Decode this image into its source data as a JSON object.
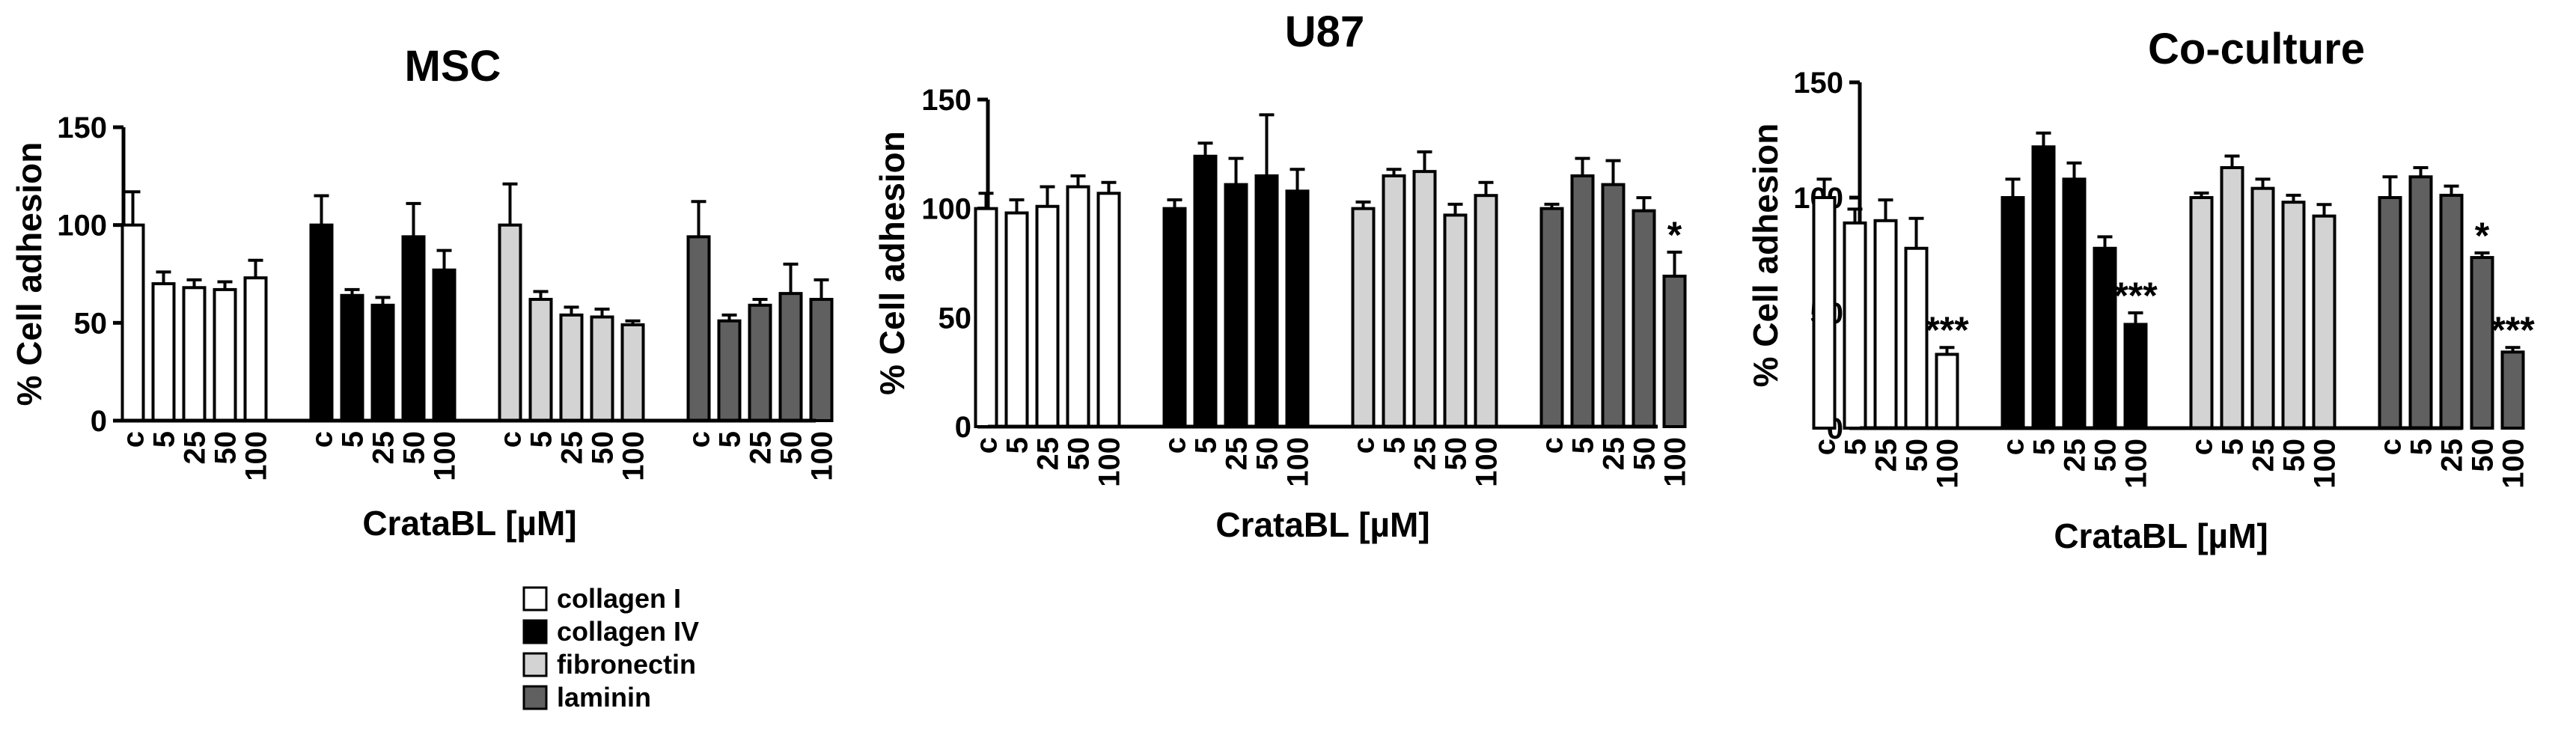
{
  "chart_data": [
    {
      "type": "bar",
      "title": "MSC",
      "xlabel": "CrataBL [µM]",
      "ylabel": "% Cell adhesion",
      "ylim": [
        0,
        150
      ],
      "yticks": [
        0,
        50,
        100,
        150
      ],
      "groups": [
        "collagen I",
        "collagen IV",
        "fibronectin",
        "laminin"
      ],
      "categories": [
        "c",
        "5",
        "25",
        "50",
        "100"
      ],
      "series": [
        {
          "name": "collagen I",
          "values": [
            100,
            70,
            68,
            67,
            73
          ],
          "errors": [
            17,
            6,
            4,
            4,
            9
          ],
          "annotations": [
            "",
            "",
            "",
            "",
            ""
          ]
        },
        {
          "name": "collagen IV",
          "values": [
            100,
            64,
            59,
            94,
            77
          ],
          "errors": [
            15,
            3,
            4,
            17,
            10
          ],
          "annotations": [
            "",
            "",
            "",
            "",
            ""
          ]
        },
        {
          "name": "fibronectin",
          "values": [
            100,
            62,
            54,
            53,
            49
          ],
          "errors": [
            21,
            4,
            4,
            4,
            2
          ],
          "annotations": [
            "",
            "",
            "",
            "",
            ""
          ]
        },
        {
          "name": "laminin",
          "values": [
            94,
            51,
            59,
            65,
            62
          ],
          "errors": [
            18,
            3,
            3,
            15,
            10
          ],
          "annotations": [
            "",
            "",
            "",
            "",
            ""
          ]
        }
      ]
    },
    {
      "type": "bar",
      "title": "U87",
      "xlabel": "CrataBL [µM]",
      "ylabel": "% Cell adhesion",
      "ylim": [
        0,
        150
      ],
      "yticks": [
        0,
        50,
        100,
        150
      ],
      "groups": [
        "collagen I",
        "collagen IV",
        "fibronectin",
        "laminin"
      ],
      "categories": [
        "c",
        "5",
        "25",
        "50",
        "100"
      ],
      "series": [
        {
          "name": "collagen I",
          "values": [
            100,
            98,
            101,
            110,
            107
          ],
          "errors": [
            7,
            6,
            9,
            5,
            5
          ],
          "annotations": [
            "",
            "",
            "",
            "",
            ""
          ]
        },
        {
          "name": "collagen IV",
          "values": [
            100,
            124,
            111,
            115,
            108
          ],
          "errors": [
            4,
            6,
            12,
            28,
            10
          ],
          "annotations": [
            "",
            "",
            "",
            "",
            ""
          ]
        },
        {
          "name": "fibronectin",
          "values": [
            100,
            115,
            117,
            97,
            106
          ],
          "errors": [
            3,
            3,
            9,
            5,
            6
          ],
          "annotations": [
            "",
            "",
            "",
            "",
            ""
          ]
        },
        {
          "name": "laminin",
          "values": [
            100,
            115,
            111,
            99,
            69
          ],
          "errors": [
            2,
            8,
            11,
            6,
            11
          ],
          "annotations": [
            "",
            "",
            "",
            "",
            "*"
          ]
        }
      ]
    },
    {
      "type": "bar",
      "title": "Co-culture",
      "xlabel": "CrataBL [µM]",
      "ylabel": "% Cell adhesion",
      "ylim": [
        0,
        150
      ],
      "yticks": [
        0,
        50,
        100,
        150
      ],
      "groups": [
        "collagen I",
        "collagen IV",
        "fibronectin",
        "laminin"
      ],
      "categories": [
        "c",
        "5",
        "25",
        "50",
        "100"
      ],
      "series": [
        {
          "name": "collagen I",
          "values": [
            100,
            89,
            90,
            78,
            32
          ],
          "errors": [
            8,
            6,
            9,
            13,
            3
          ],
          "annotations": [
            "",
            "",
            "",
            "",
            "***"
          ]
        },
        {
          "name": "collagen IV",
          "values": [
            100,
            122,
            108,
            78,
            45
          ],
          "errors": [
            8,
            6,
            7,
            5,
            5
          ],
          "annotations": [
            "",
            "",
            "",
            "",
            "***"
          ]
        },
        {
          "name": "fibronectin",
          "values": [
            100,
            113,
            104,
            98,
            92
          ],
          "errors": [
            2,
            5,
            4,
            3,
            5
          ],
          "annotations": [
            "",
            "",
            "",
            "",
            ""
          ]
        },
        {
          "name": "laminin",
          "values": [
            100,
            109,
            101,
            74,
            33
          ],
          "errors": [
            9,
            4,
            4,
            2,
            2
          ],
          "annotations": [
            "",
            "",
            "",
            "*",
            "***"
          ]
        }
      ]
    }
  ],
  "legend": {
    "placement": "bottom-left-center",
    "items": [
      {
        "label": "collagen I",
        "color": "#ffffff"
      },
      {
        "label": "collagen IV",
        "color": "#000000"
      },
      {
        "label": "fibronectin",
        "color": "#d3d3d3"
      },
      {
        "label": "laminin",
        "color": "#606060"
      }
    ]
  },
  "colors": {
    "collagen I": "#ffffff",
    "collagen IV": "#000000",
    "fibronectin": "#d3d3d3",
    "laminin": "#606060"
  }
}
